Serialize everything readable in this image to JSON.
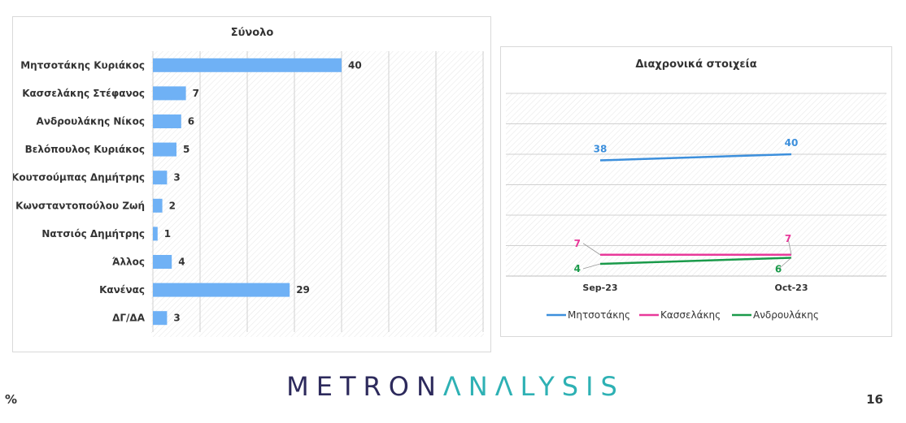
{
  "chart_data": [
    {
      "type": "bar",
      "orientation": "horizontal",
      "title": "Σύνολο",
      "categories": [
        "Μητσοτάκης Κυριάκος",
        "Κασσελάκης Στέφανος",
        "Ανδρουλάκης Νίκος",
        "Βελόπουλος Κυριάκος",
        "Κουτσούμπας Δημήτρης",
        "Κωνσταντοπούλου Ζωή",
        "Νατσιός Δημήτρης",
        "Άλλος",
        "Κανένας",
        "ΔΓ/ΔΑ"
      ],
      "values": [
        40,
        7,
        6,
        5,
        3,
        2,
        1,
        4,
        29,
        3
      ],
      "xlim": [
        0,
        70
      ],
      "color": "#6fb1f5"
    },
    {
      "type": "line",
      "title": "Διαχρονικά στοιχεία",
      "categories": [
        "Sep-23",
        "Oct-23"
      ],
      "ylim": [
        0,
        60
      ],
      "series": [
        {
          "name": "Μητσοτάκης",
          "values": [
            38,
            40
          ],
          "color": "#3c8fdc"
        },
        {
          "name": "Κασσελάκης",
          "values": [
            7,
            7
          ],
          "color": "#e8399a"
        },
        {
          "name": "Ανδρουλάκης",
          "values": [
            4,
            6
          ],
          "color": "#1a9a4a"
        }
      ],
      "legend": "bottom"
    }
  ],
  "footer": {
    "unit": "%",
    "brand_part1": "METRON",
    "brand_part2": "ΛNΛLYSIS",
    "page_number": "16"
  }
}
